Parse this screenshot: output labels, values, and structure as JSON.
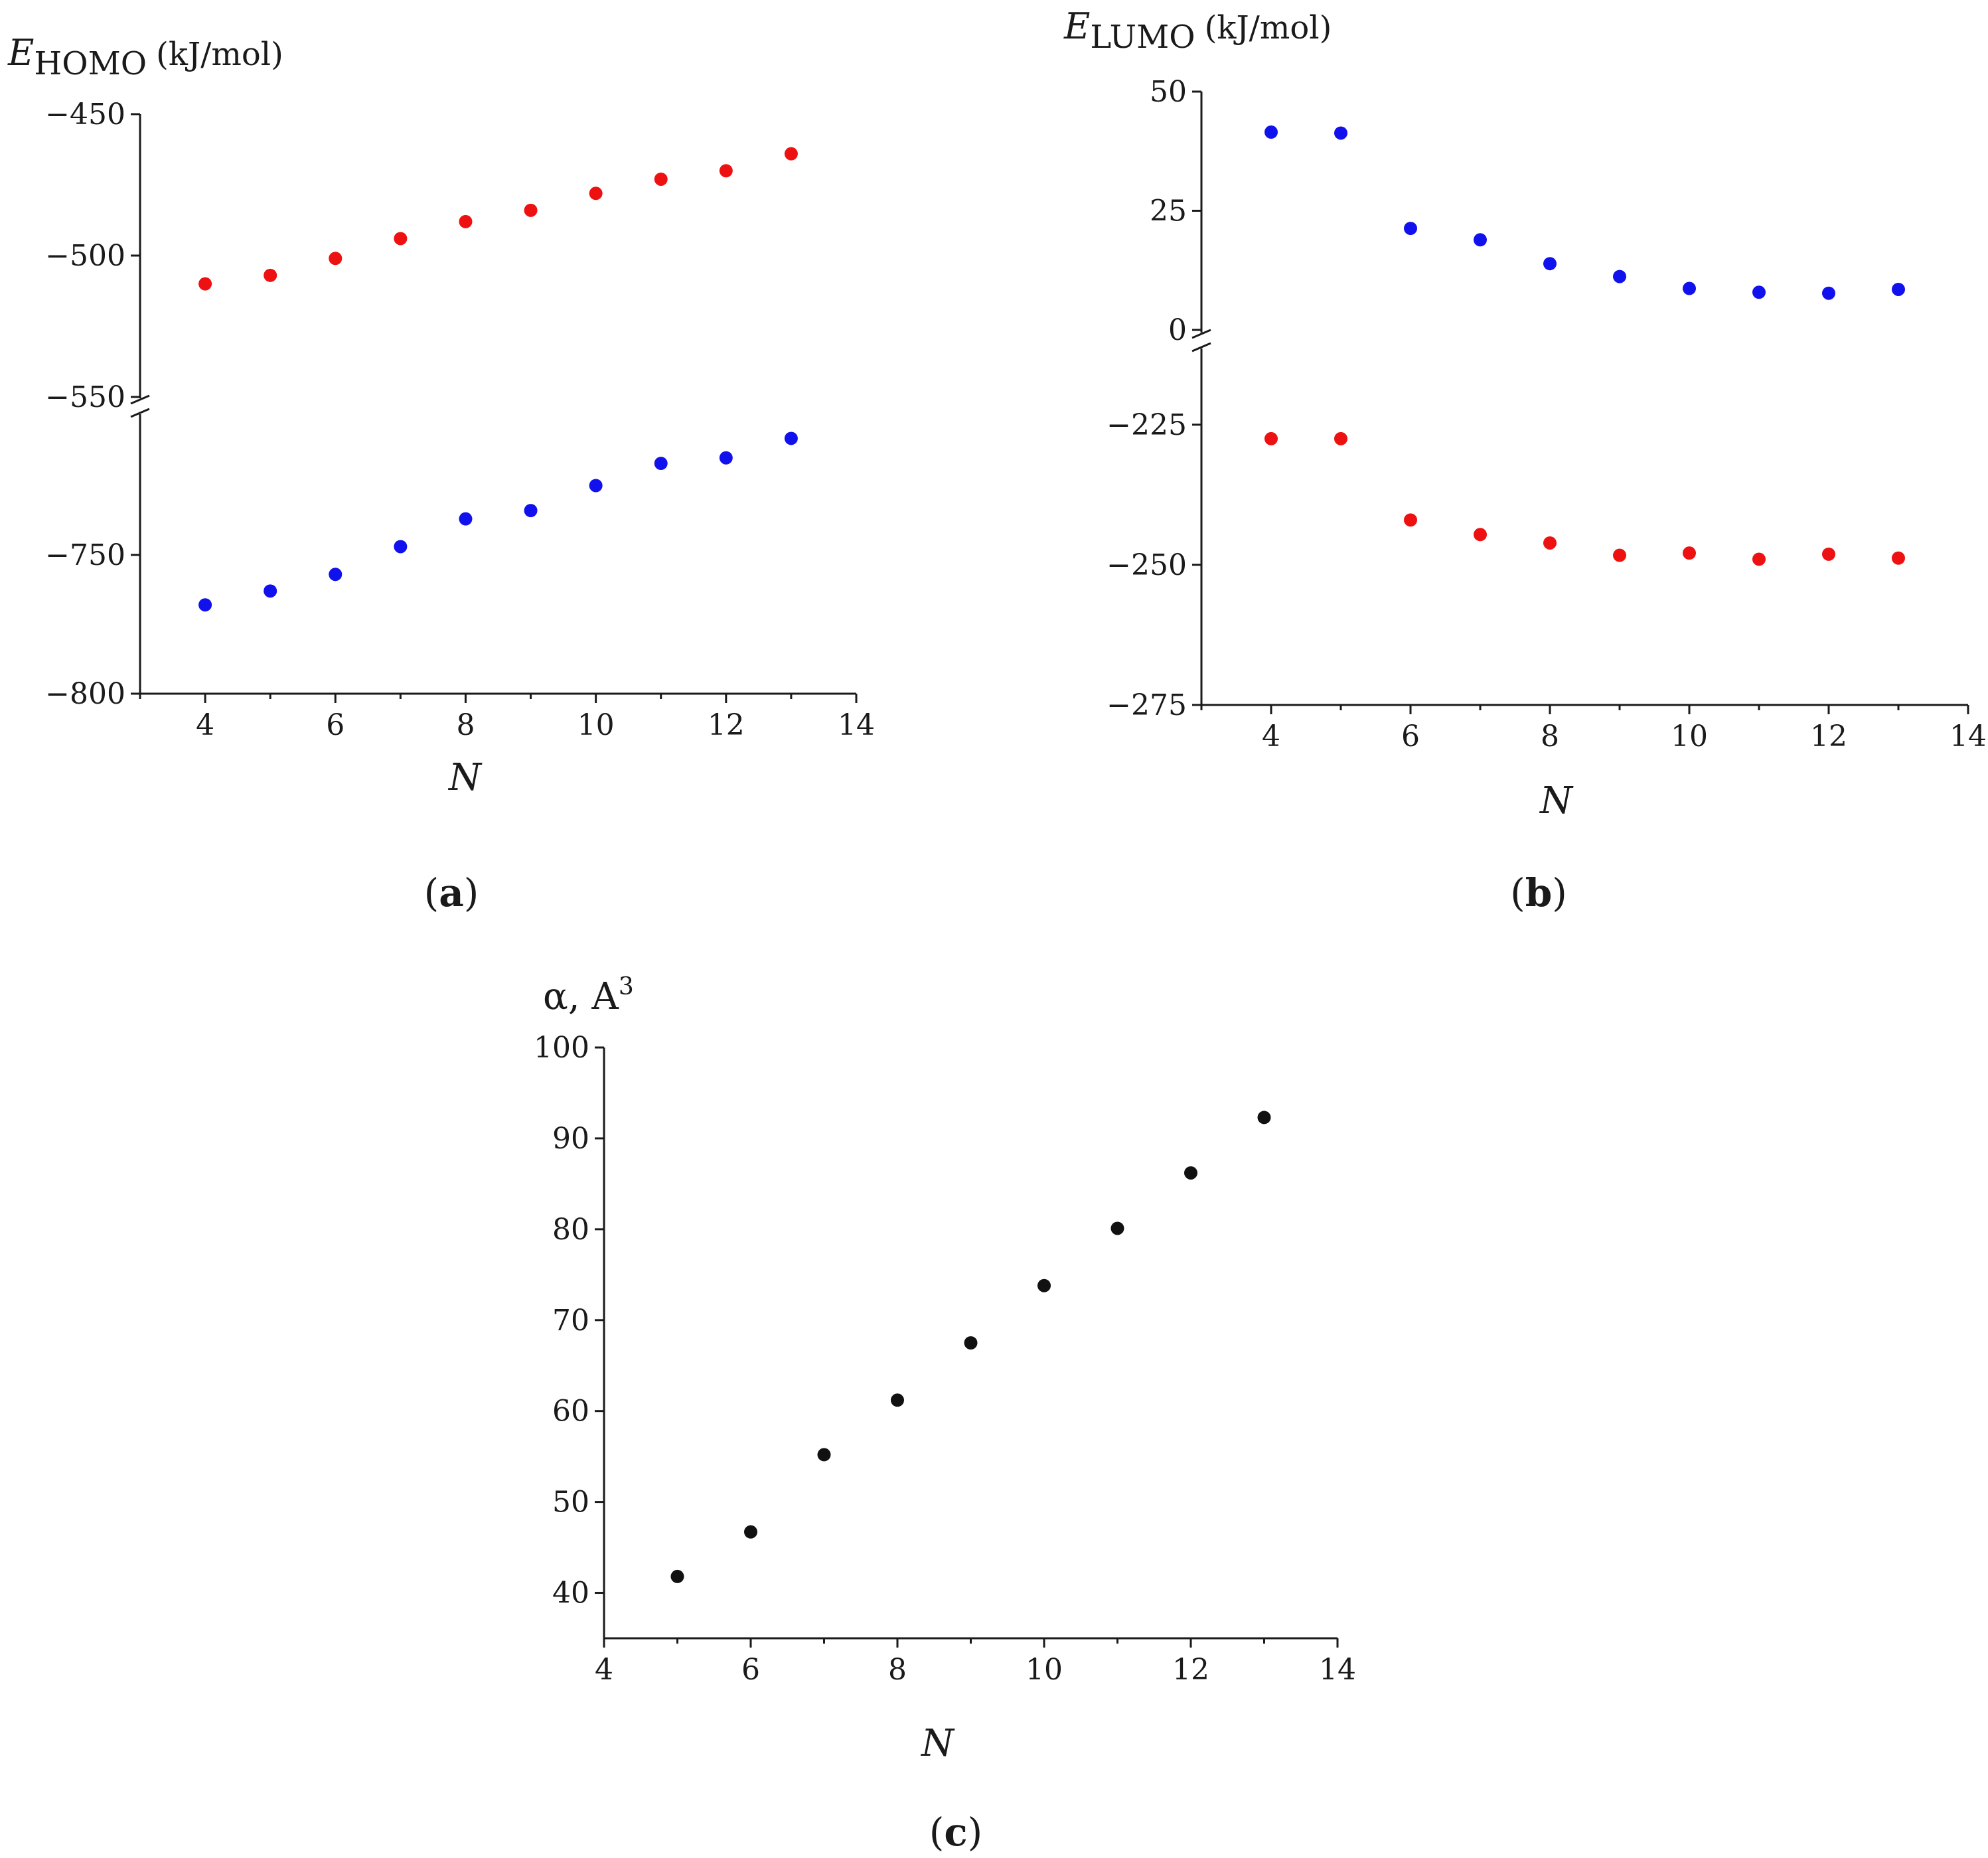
{
  "chart_data": [
    {
      "id": "a",
      "type": "scatter",
      "panel_label": "a",
      "ylabel": {
        "symbol": "E",
        "subscript": "HOMO",
        "unit": "(kJ/mol)"
      },
      "xlabel": "N",
      "x_ticks": [
        4,
        6,
        8,
        10,
        12,
        14
      ],
      "xlim": [
        3,
        14
      ],
      "broken_axis": true,
      "upper_range": [
        -550,
        -450
      ],
      "upper_ticks": [
        -450,
        -500,
        -550
      ],
      "lower_range": [
        -800,
        -700
      ],
      "lower_ticks": [
        -750,
        -800
      ],
      "series": [
        {
          "name": "upper",
          "color": "#ee1111",
          "x": [
            4,
            5,
            6,
            7,
            8,
            9,
            10,
            11,
            12,
            13
          ],
          "y": [
            -510,
            -507,
            -501,
            -494,
            -488,
            -484,
            -478,
            -473,
            -470,
            -464
          ]
        },
        {
          "name": "lower",
          "color": "#1111ee",
          "x": [
            4,
            5,
            6,
            7,
            8,
            9,
            10,
            11,
            12,
            13
          ],
          "y": [
            -768,
            -763,
            -757,
            -747,
            -737,
            -734,
            -725,
            -717,
            -715,
            -708
          ]
        }
      ]
    },
    {
      "id": "b",
      "type": "scatter",
      "panel_label": "b",
      "ylabel": {
        "symbol": "E",
        "subscript": "LUMO",
        "unit": "(kJ/mol)"
      },
      "xlabel": "N",
      "x_ticks": [
        4,
        6,
        8,
        10,
        12,
        14
      ],
      "xlim": [
        3,
        14
      ],
      "broken_axis": true,
      "upper_range": [
        0,
        50
      ],
      "upper_ticks": [
        50,
        25,
        0
      ],
      "lower_range": [
        -275,
        -212
      ],
      "lower_ticks": [
        -225,
        -250,
        -275
      ],
      "series": [
        {
          "name": "upper",
          "color": "#1111ee",
          "x": [
            4,
            5,
            6,
            7,
            8,
            9,
            10,
            11,
            12,
            13
          ],
          "y": [
            41.5,
            41.3,
            21.3,
            18.9,
            13.9,
            11.2,
            8.7,
            7.9,
            7.7,
            8.5
          ]
        },
        {
          "name": "lower",
          "color": "#ee1111",
          "x": [
            4,
            5,
            6,
            7,
            8,
            9,
            10,
            11,
            12,
            13
          ],
          "y": [
            -227.5,
            -227.5,
            -242,
            -244.6,
            -246.1,
            -248.3,
            -247.9,
            -249,
            -248.1,
            -248.8
          ]
        }
      ]
    },
    {
      "id": "c",
      "type": "scatter",
      "panel_label": "c",
      "ylabel": {
        "symbol": "α, A",
        "superscript": "3"
      },
      "xlabel": "N",
      "x_ticks": [
        4,
        6,
        8,
        10,
        12,
        14
      ],
      "xlim": [
        4,
        14
      ],
      "ylim": [
        35,
        100
      ],
      "y_ticks": [
        40,
        50,
        60,
        70,
        80,
        90,
        100
      ],
      "series": [
        {
          "name": "alpha",
          "color": "#111111",
          "x": [
            5,
            6,
            7,
            8,
            9,
            10,
            11,
            12,
            13
          ],
          "y": [
            41.8,
            46.7,
            55.2,
            61.2,
            67.5,
            73.8,
            80.1,
            86.2,
            92.3
          ]
        }
      ]
    }
  ]
}
